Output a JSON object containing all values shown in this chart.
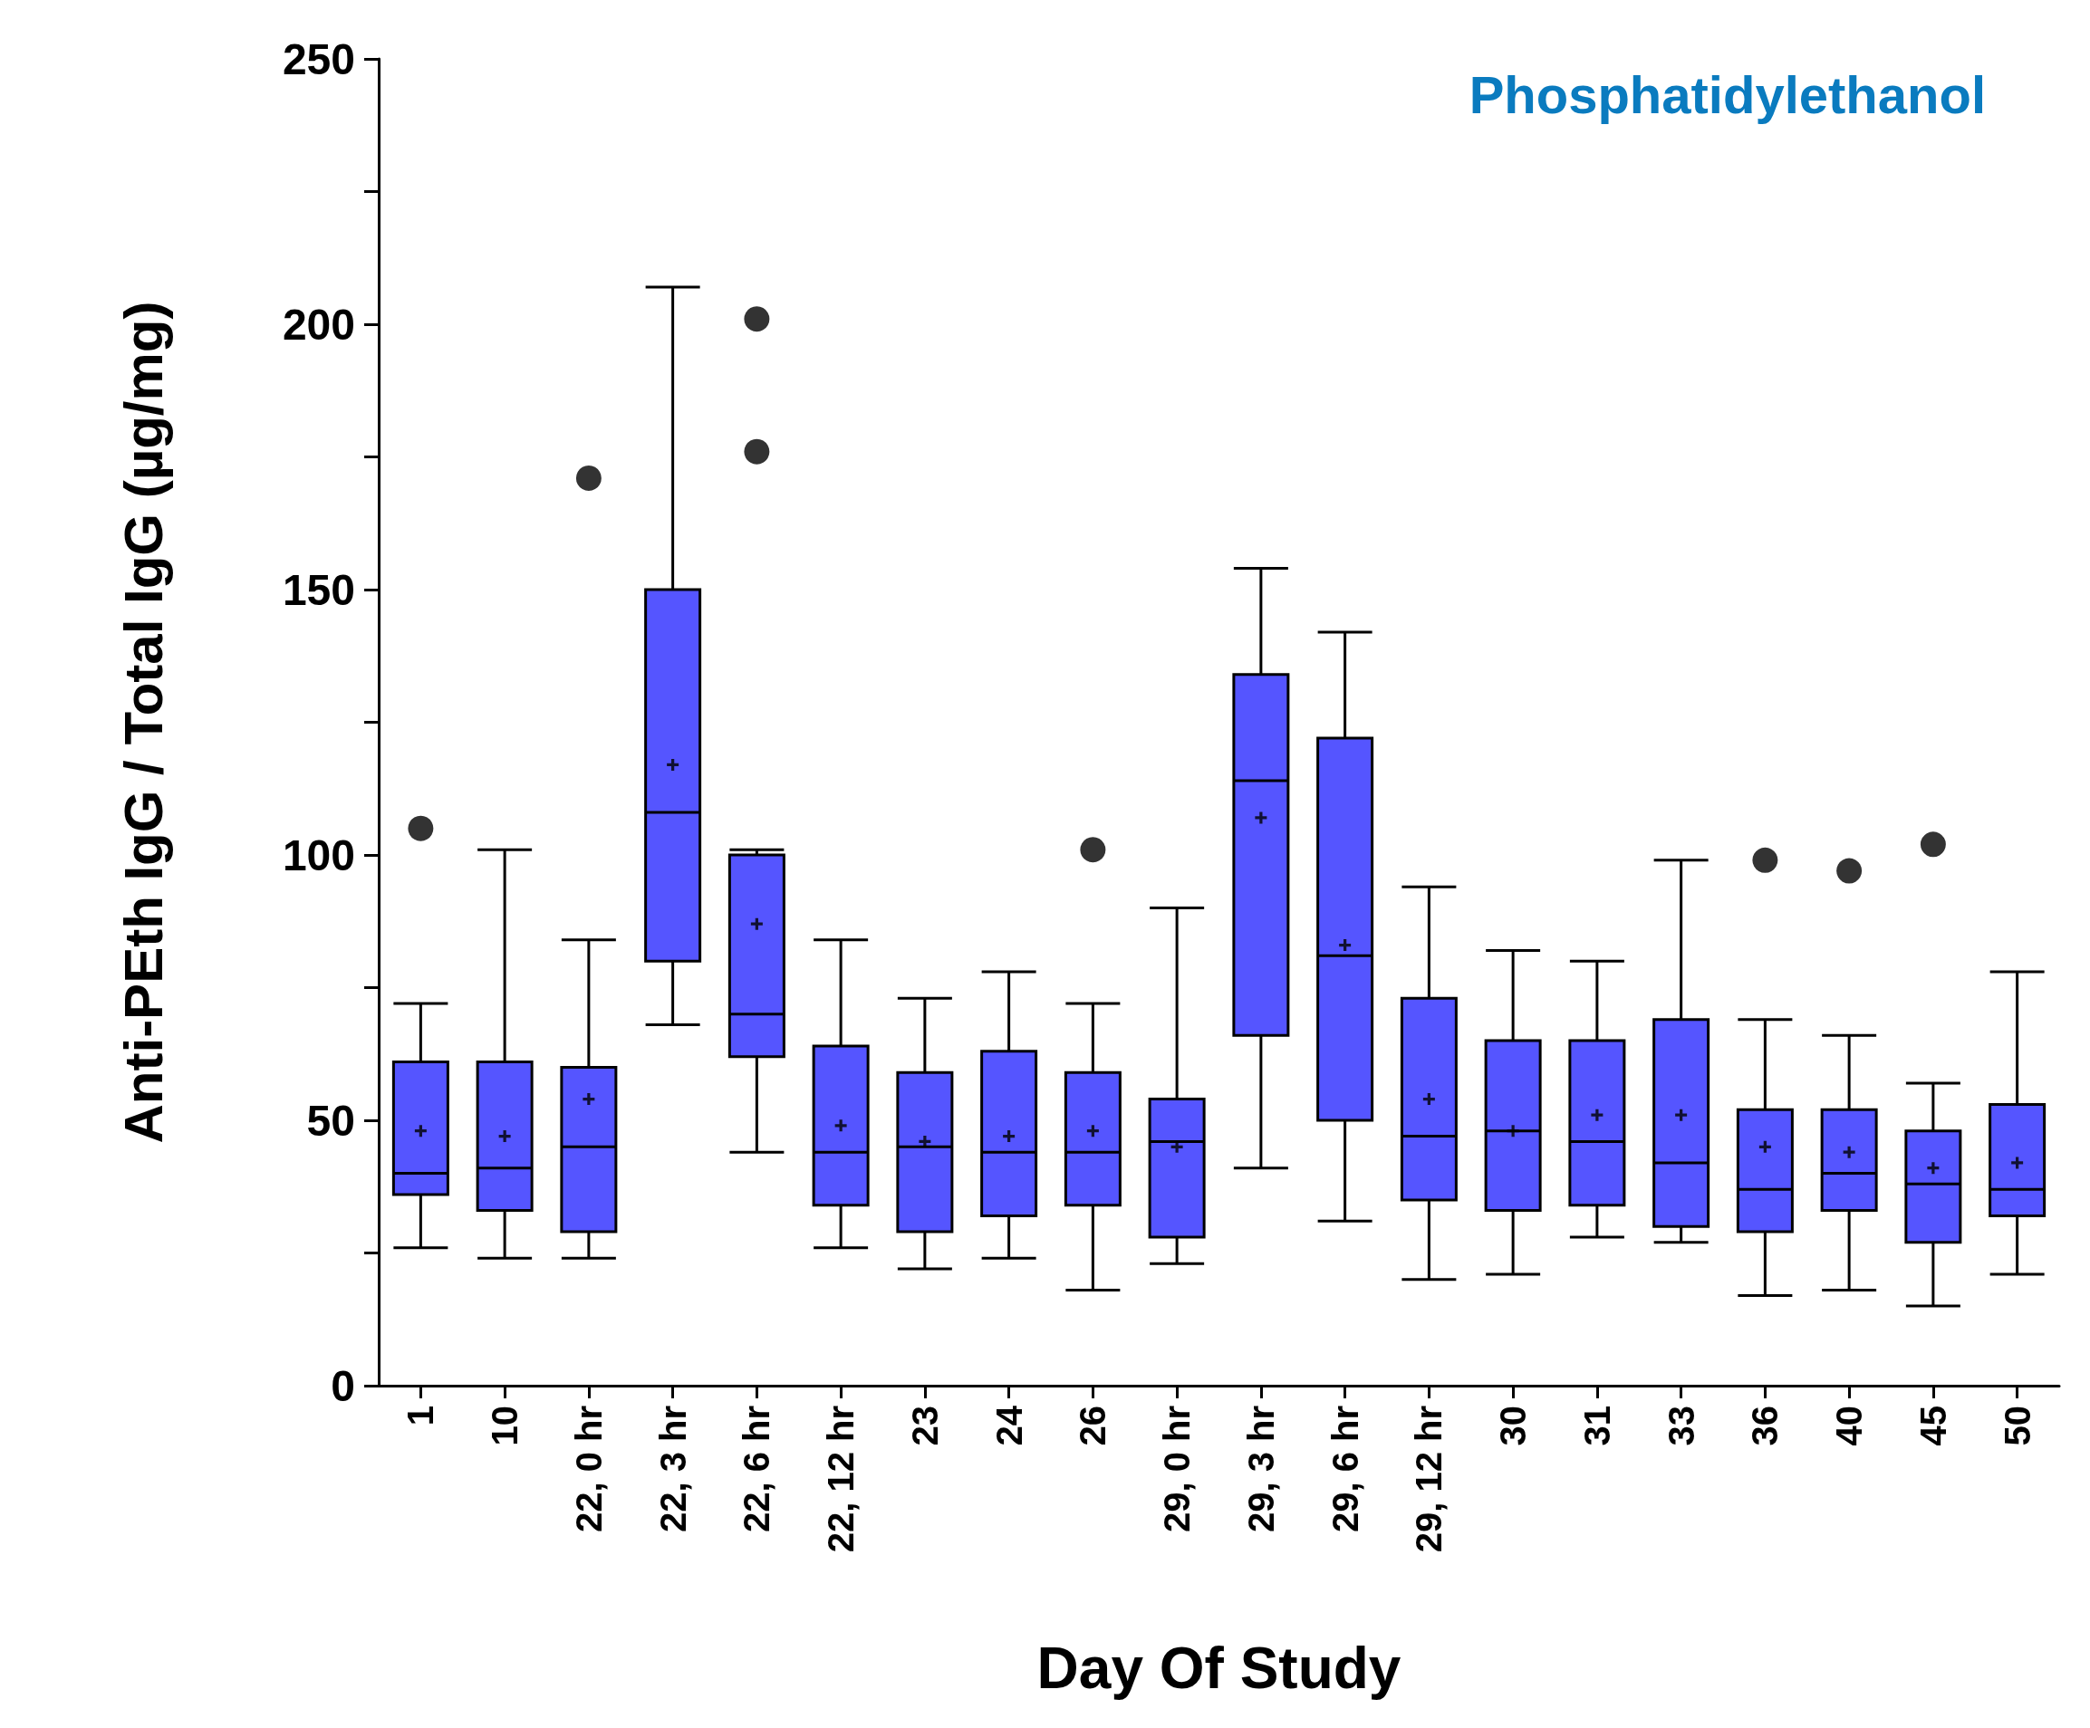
{
  "chart_data": {
    "type": "box",
    "title": "Phosphatidylethanol",
    "xlabel": "Day Of Study",
    "ylabel": "Anti-PEth IgG / Total IgG (µg/mg)",
    "categories": [
      "1",
      "10",
      "22, 0 hr",
      "22, 3 hr",
      "22, 6 hr",
      "22, 12 hr",
      "23",
      "24",
      "26",
      "29, 0 hr",
      "29, 3 hr",
      "29, 6 hr",
      "29, 12 hr",
      "30",
      "31",
      "33",
      "36",
      "40",
      "45",
      "50"
    ],
    "color": "#5555ff",
    "marker": "cross",
    "ylim": [
      0,
      250
    ],
    "yticks": [
      0,
      {
        "value": 25,
        "label": null
      },
      50,
      {
        "value": 75,
        "label": null
      },
      100,
      {
        "value": 125,
        "label": null
      },
      150,
      {
        "value": 175,
        "label": null
      },
      200,
      {
        "value": 225,
        "label": null
      },
      250
    ],
    "boxes": [
      {
        "low": 26,
        "q1": 36,
        "median": 40,
        "q3": 61,
        "high": 72,
        "mean": 48,
        "outliers": [
          105
        ]
      },
      {
        "low": 24,
        "q1": 33,
        "median": 41,
        "q3": 61,
        "high": 101,
        "mean": 47
      },
      {
        "low": 24,
        "q1": 29,
        "median": 45,
        "q3": 60,
        "high": 84,
        "mean": 54,
        "outliers": [
          171
        ]
      },
      {
        "low": 68,
        "q1": 80,
        "median": 108,
        "q3": 150,
        "high": 207,
        "mean": 117
      },
      {
        "low": 44,
        "q1": 62,
        "median": 70,
        "q3": 100,
        "high": 101,
        "mean": 87,
        "outliers": [
          201,
          176
        ]
      },
      {
        "low": 26,
        "q1": 34,
        "median": 44,
        "q3": 64,
        "high": 84,
        "mean": 49
      },
      {
        "low": 22,
        "q1": 29,
        "median": 45,
        "q3": 59,
        "high": 73,
        "mean": 46
      },
      {
        "low": 24,
        "q1": 32,
        "median": 44,
        "q3": 63,
        "high": 78,
        "mean": 47
      },
      {
        "low": 18,
        "q1": 34,
        "median": 44,
        "q3": 59,
        "high": 72,
        "mean": 48,
        "outliers": [
          101
        ]
      },
      {
        "low": 23,
        "q1": 28,
        "median": 46,
        "q3": 54,
        "high": 90,
        "mean": 45
      },
      {
        "low": 41,
        "q1": 66,
        "median": 114,
        "q3": 134,
        "high": 154,
        "mean": 107
      },
      {
        "low": 31,
        "q1": 50,
        "median": 81,
        "q3": 122,
        "high": 142,
        "mean": 83
      },
      {
        "low": 20,
        "q1": 35,
        "median": 47,
        "q3": 73,
        "high": 94,
        "mean": 54
      },
      {
        "low": 21,
        "q1": 33,
        "median": 48,
        "q3": 65,
        "high": 82,
        "mean": 48
      },
      {
        "low": 28,
        "q1": 34,
        "median": 46,
        "q3": 65,
        "high": 80,
        "mean": 51
      },
      {
        "low": 27,
        "q1": 30,
        "median": 42,
        "q3": 69,
        "high": 99,
        "mean": 51
      },
      {
        "low": 17,
        "q1": 29,
        "median": 37,
        "q3": 52,
        "high": 69,
        "mean": 45,
        "outliers": [
          99
        ]
      },
      {
        "low": 18,
        "q1": 33,
        "median": 40,
        "q3": 52,
        "high": 66,
        "mean": 44,
        "outliers": [
          97
        ]
      },
      {
        "low": 15,
        "q1": 27,
        "median": 38,
        "q3": 48,
        "high": 57,
        "mean": 41,
        "outliers": [
          102
        ]
      },
      {
        "low": 21,
        "q1": 32,
        "median": 37,
        "q3": 53,
        "high": 78,
        "mean": 42
      }
    ]
  }
}
